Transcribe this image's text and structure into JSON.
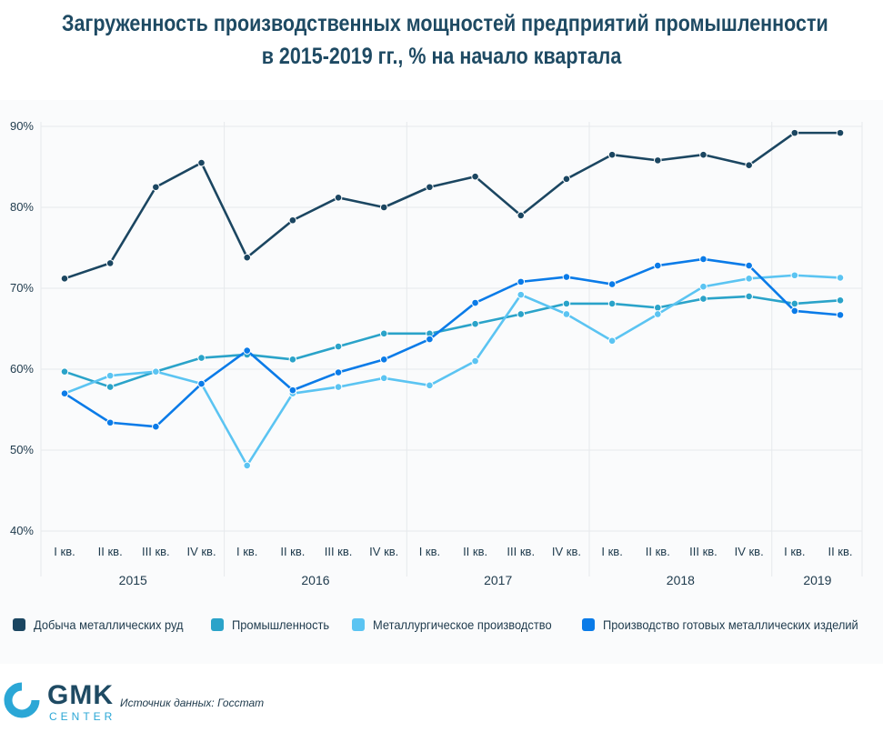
{
  "title": {
    "line1": "Загруженность производственных мощностей предприятий промышленности",
    "line2": "в 2015-2019 гг., % на начало квартала"
  },
  "chart_data": {
    "type": "line",
    "yticks": [
      "90%",
      "80%",
      "70%",
      "60%",
      "50%",
      "40%"
    ],
    "ytick_values": [
      90,
      80,
      70,
      60,
      50,
      40
    ],
    "ylim": [
      40,
      90
    ],
    "grid": true,
    "legend_position": "bottom",
    "quarters": [
      "I кв.",
      "II кв.",
      "III кв.",
      "IV кв.",
      "I кв.",
      "II кв.",
      "III кв.",
      "IV кв.",
      "I кв.",
      "II кв.",
      "III кв.",
      "IV кв.",
      "I кв.",
      "II кв.",
      "III кв.",
      "IV кв.",
      "I кв.",
      "II кв."
    ],
    "years": [
      {
        "label": "2015",
        "count": 4
      },
      {
        "label": "2016",
        "count": 4
      },
      {
        "label": "2017",
        "count": 4
      },
      {
        "label": "2018",
        "count": 4
      },
      {
        "label": "2019",
        "count": 2
      }
    ],
    "series": [
      {
        "name": "Добыча металлических руд",
        "color": "#1b4661",
        "values": [
          71.2,
          73.1,
          82.5,
          85.5,
          73.8,
          78.4,
          81.2,
          80.0,
          82.5,
          83.8,
          79.0,
          83.5,
          86.5,
          85.8,
          86.5,
          85.2,
          89.2,
          89.2
        ]
      },
      {
        "name": "Промышленность",
        "color": "#2aa3c9",
        "values": [
          59.7,
          57.8,
          59.7,
          61.4,
          61.8,
          61.2,
          62.8,
          64.4,
          64.4,
          65.6,
          66.8,
          68.1,
          68.1,
          67.6,
          68.7,
          69.0,
          68.1,
          68.5
        ]
      },
      {
        "name": "Металлургическое производство",
        "color": "#5bc4f2",
        "values": [
          57.0,
          59.2,
          59.7,
          58.2,
          48.1,
          57.0,
          57.8,
          58.9,
          58.0,
          61.0,
          69.2,
          66.8,
          63.5,
          66.8,
          70.2,
          71.2,
          71.6,
          71.3
        ]
      },
      {
        "name": "Производство готовых металлических изделий",
        "color": "#0a7be8",
        "values": [
          57.0,
          53.4,
          52.9,
          58.2,
          62.3,
          57.4,
          59.6,
          61.2,
          63.7,
          68.2,
          70.8,
          71.4,
          70.5,
          72.8,
          73.6,
          72.8,
          67.2,
          66.7
        ]
      }
    ]
  },
  "source": "Источник данных: Госстат",
  "logo": {
    "main": "GMK",
    "sub": "CENTER"
  }
}
